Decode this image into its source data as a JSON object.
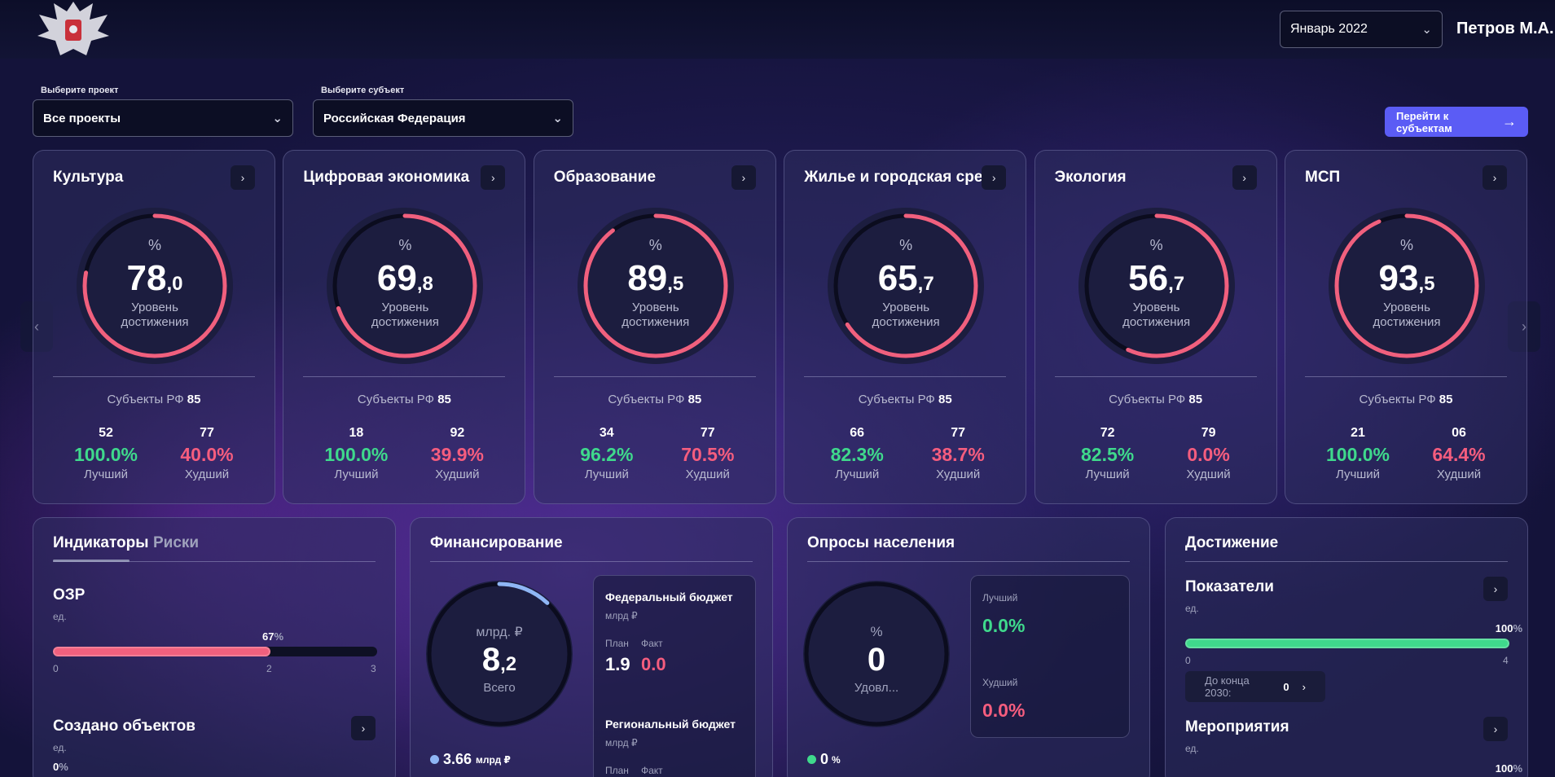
{
  "header": {
    "month": "Январь 2022",
    "user": "Петров М.А."
  },
  "filters": {
    "project_label": "Выберите проект",
    "project_value": "Все проекты",
    "subject_label": "Выберите субъект",
    "subject_value": "Российская Федерация",
    "go_button": "Перейти к субъектам"
  },
  "cards": [
    {
      "title": "Культура",
      "int": "78",
      "dec": ",0",
      "progress": 0.78,
      "best_count": "52",
      "best_pct": "100.0%",
      "worst_count": "77",
      "worst_pct": "40.0%"
    },
    {
      "title": "Цифровая экономика",
      "int": "69",
      "dec": ",8",
      "progress": 0.698,
      "best_count": "18",
      "best_pct": "100.0%",
      "worst_count": "92",
      "worst_pct": "39.9%"
    },
    {
      "title": "Образование",
      "int": "89",
      "dec": ",5",
      "progress": 0.895,
      "best_count": "34",
      "best_pct": "96.2%",
      "worst_count": "77",
      "worst_pct": "70.5%"
    },
    {
      "title": "Жилье и городская среда",
      "int": "65",
      "dec": ",7",
      "progress": 0.657,
      "best_count": "66",
      "best_pct": "82.3%",
      "worst_count": "77",
      "worst_pct": "38.7%"
    },
    {
      "title": "Экология",
      "int": "56",
      "dec": ",7",
      "progress": 0.567,
      "best_count": "72",
      "best_pct": "82.5%",
      "worst_count": "79",
      "worst_pct": "0.0%"
    },
    {
      "title": "МСП",
      "int": "93",
      "dec": ",5",
      "progress": 0.935,
      "best_count": "21",
      "best_pct": "100.0%",
      "worst_count": "06",
      "worst_pct": "64.4%"
    }
  ],
  "card_common": {
    "pct_symbol": "%",
    "caption_line1": "Уровень",
    "caption_line2": "достижения",
    "subjects_label": "Субъекты РФ",
    "subjects_count": "85",
    "best_label": "Лучший",
    "worst_label": "Худший"
  },
  "indicators": {
    "tab_indicators": "Индикаторы",
    "tab_risks": "Риски",
    "ozr_title": "ОЗР",
    "ozr_unit": "ед.",
    "ozr_value": "67",
    "ozr_pct": "%",
    "ozr_progress": 0.67,
    "ozr_min": "0",
    "ozr_mid": "2",
    "ozr_max": "3",
    "created_title": "Создано объектов",
    "created_unit": "ед.",
    "created_value": "0",
    "created_pct": "%"
  },
  "financing": {
    "title": "Финансирование",
    "unit": "млрд. ₽",
    "int": "8",
    "dec": ",2",
    "caption": "Всего",
    "progress": 0.12,
    "legend_value": "3.66",
    "legend_unit": "млрд ₽",
    "federal_title": "Федеральный бюджет",
    "federal_unit": "млрд ₽",
    "plan_label": "План",
    "fact_label": "Факт",
    "federal_plan": "1.9",
    "federal_fact": "0.0",
    "regional_title": "Региональный бюджет",
    "regional_unit": "млрд ₽",
    "regional_plan_label": "План",
    "regional_fact_label": "Факт",
    "legend_color": "#8fb6f5"
  },
  "survey": {
    "title": "Опросы населения",
    "pct": "%",
    "value": "0",
    "caption": "Удовл...",
    "best_label": "Лучший",
    "best_value": "0.0%",
    "worst_label": "Худший",
    "worst_value": "0.0%",
    "legend_value": "0",
    "legend_pct": "%",
    "legend_color": "#3fd98c"
  },
  "achievement": {
    "title": "Достижение",
    "indicators_title": "Показатели",
    "indicators_unit": "ед.",
    "indicators_pct": "100",
    "indicators_pct_sym": "%",
    "indicators_progress": 1.0,
    "indicators_min": "0",
    "indicators_max": "4",
    "until_label": "До конца 2030:",
    "until_value": "0",
    "events_title": "Мероприятия",
    "events_unit": "ед.",
    "events_pct": "100",
    "events_pct_sym": "%"
  },
  "colors": {
    "ring": "#f0607e",
    "accent_button": "#5b5cf5",
    "green": "#3fd98c",
    "red": "#f55d7e"
  }
}
